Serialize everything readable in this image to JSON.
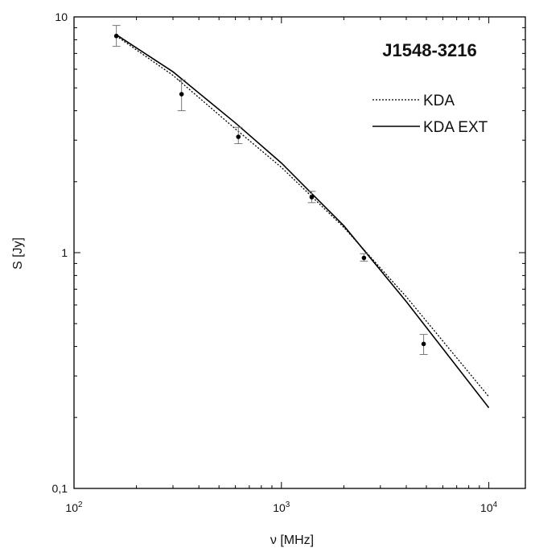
{
  "chart_data": {
    "type": "scatter",
    "title": "J1548-3216",
    "xlabel": "ν [MHz]",
    "ylabel": "S [Jy]",
    "xscale": "log",
    "yscale": "log",
    "xlim": [
      100,
      15000
    ],
    "ylim": [
      0.1,
      10
    ],
    "grid": false,
    "legend_position": "top-right",
    "x_ticks": [
      {
        "value": 100,
        "base": "10",
        "exp": "2"
      },
      {
        "value": 1000,
        "base": "10",
        "exp": "3"
      },
      {
        "value": 10000,
        "base": "10",
        "exp": "4"
      }
    ],
    "y_ticks": [
      {
        "value": 0.1,
        "label": "0,1"
      },
      {
        "value": 1,
        "label": "1"
      },
      {
        "value": 10,
        "label": "10"
      }
    ],
    "points": [
      {
        "x": 160,
        "y": 8.3,
        "yerr_low": 7.5,
        "yerr_high": 9.2
      },
      {
        "x": 330,
        "y": 4.7,
        "yerr_low": 4.0,
        "yerr_high": 5.4
      },
      {
        "x": 620,
        "y": 3.1,
        "yerr_low": 2.9,
        "yerr_high": 3.4
      },
      {
        "x": 1400,
        "y": 1.72,
        "yerr_low": 1.63,
        "yerr_high": 1.82
      },
      {
        "x": 2500,
        "y": 0.95,
        "yerr_low": 0.92,
        "yerr_high": 0.99
      },
      {
        "x": 4850,
        "y": 0.41,
        "yerr_low": 0.37,
        "yerr_high": 0.45
      }
    ],
    "series": [
      {
        "name": "KDA",
        "style": "dotted",
        "x": [
          160,
          300,
          600,
          1000,
          2000,
          4000,
          10000
        ],
        "y": [
          8.3,
          5.65,
          3.35,
          2.3,
          1.28,
          0.65,
          0.245
        ]
      },
      {
        "name": "KDA EXT",
        "style": "solid",
        "x": [
          160,
          300,
          600,
          1000,
          2000,
          4000,
          10000
        ],
        "y": [
          8.4,
          5.85,
          3.55,
          2.4,
          1.3,
          0.62,
          0.22
        ]
      }
    ],
    "colors": {
      "line": "#000000",
      "marker": "#000000",
      "errorbar": "#777777",
      "axis": "#000000"
    }
  }
}
